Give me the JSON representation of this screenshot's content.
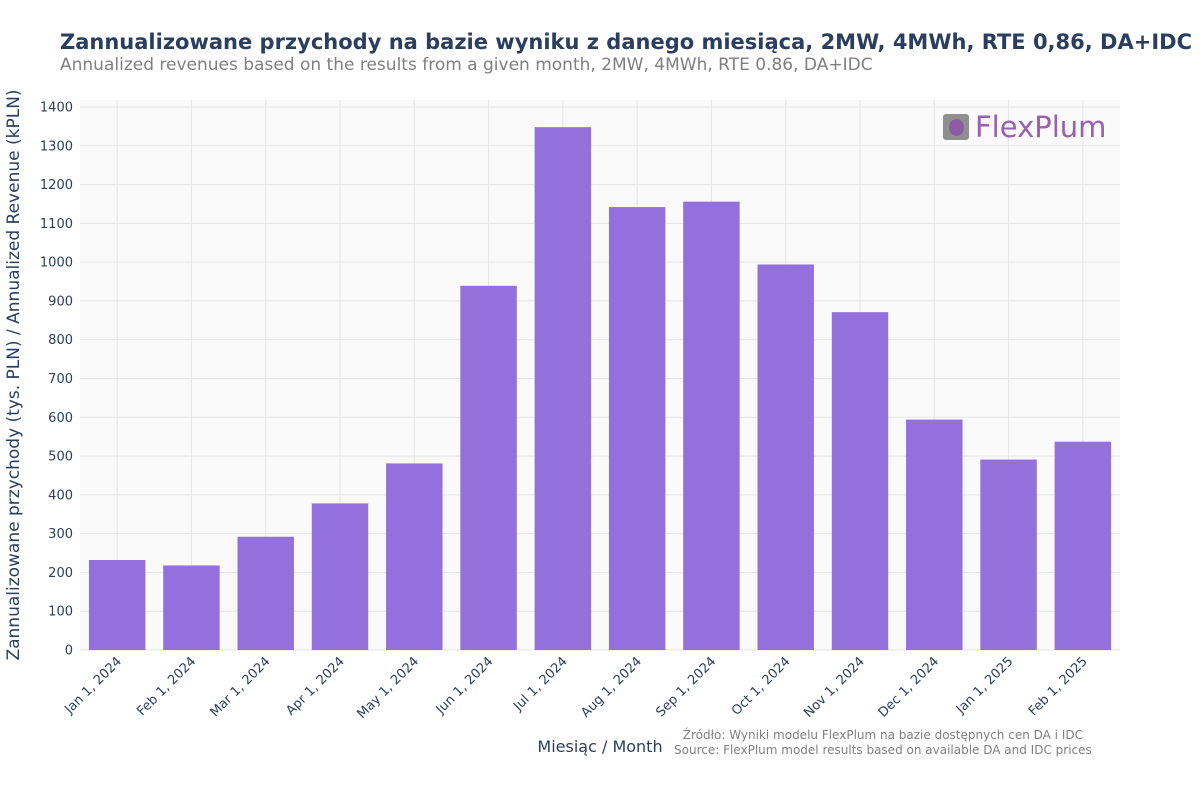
{
  "chart_data": {
    "type": "bar",
    "title": "Zannualizowane przychody na bazie wyniku z danego miesiąca, 2MW, 4MWh, RTE 0,86, DA+IDC",
    "subtitle": "Annualized revenues based on the results from a given month, 2MW, 4MWh, RTE 0.86, DA+IDC",
    "xlabel": "Miesiąc / Month",
    "ylabel": "Zannualizowane przychody (tys. PLN) / Annualized Revenue (kPLN)",
    "ylim": [
      0,
      1400
    ],
    "yticks": [
      0,
      100,
      200,
      300,
      400,
      500,
      600,
      700,
      800,
      900,
      1000,
      1100,
      1200,
      1300,
      1400
    ],
    "categories": [
      "Jan 1, 2024",
      "Feb 1, 2024",
      "Mar 1, 2024",
      "Apr 1, 2024",
      "May 1, 2024",
      "Jun 1, 2024",
      "Jul 1, 2024",
      "Aug 1, 2024",
      "Sep 1, 2024",
      "Oct 1, 2024",
      "Nov 1, 2024",
      "Dec 1, 2024",
      "Jan 1, 2025",
      "Feb 1, 2025"
    ],
    "values": [
      232,
      218,
      292,
      378,
      481,
      939,
      1348,
      1142,
      1156,
      994,
      871,
      594,
      491,
      537
    ],
    "bar_color": "#9370db",
    "grid": true,
    "legend": "none"
  },
  "logo": {
    "text": "FlexPlum",
    "icon": "plum-icon"
  },
  "source": {
    "line1": "Źródło: Wyniki modelu FlexPlum na bazie dostępnych cen DA i IDC",
    "line2": "Source: FlexPlum model results based on available DA and IDC prices"
  }
}
